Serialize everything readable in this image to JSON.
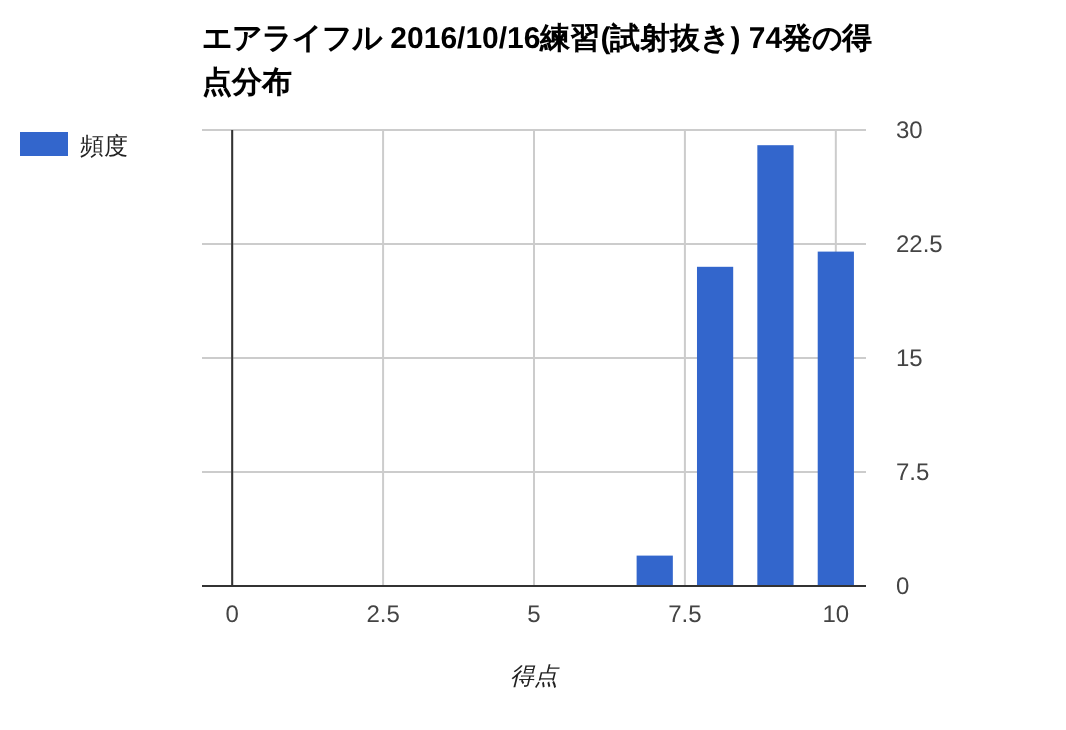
{
  "chart_data": {
    "type": "bar",
    "title": "エアライフル 2016/10/16練習(試射抜き) 74発の得点分布",
    "xlabel": "得点",
    "x": [
      7,
      8,
      9,
      10
    ],
    "series": [
      {
        "name": "頻度",
        "color": "#3366cc",
        "values": [
          2,
          21,
          29,
          22
        ]
      }
    ],
    "xlim": [
      -0.5,
      10.5
    ],
    "xticks": [
      0,
      2.5,
      5,
      7.5,
      10
    ],
    "ylim": [
      0,
      30
    ],
    "yticks": [
      0,
      7.5,
      15,
      22.5,
      30
    ],
    "grid": true,
    "legend": "left"
  }
}
